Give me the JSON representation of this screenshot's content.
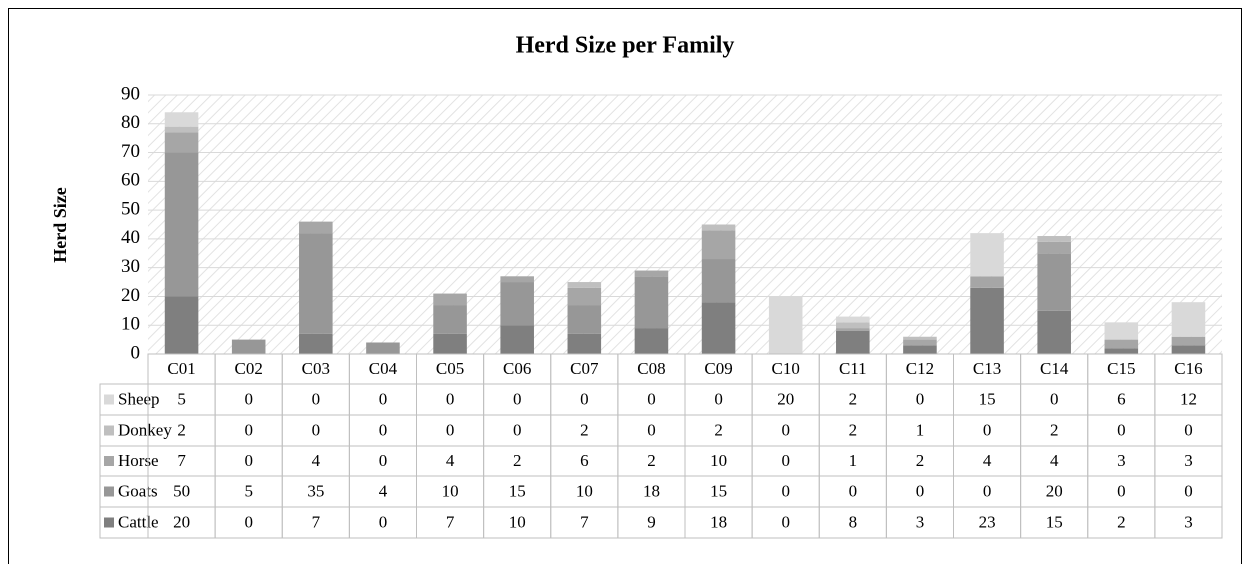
{
  "chart_data": {
    "type": "stacked-bar",
    "title": "Herd Size per Family",
    "y_label": "Herd Size",
    "categories": [
      "C01",
      "C02",
      "C03",
      "C04",
      "C05",
      "C06",
      "C07",
      "C08",
      "C09",
      "C10",
      "C11",
      "C12",
      "C13",
      "C14",
      "C15",
      "C16"
    ],
    "series": [
      {
        "name": "Sheep",
        "color": "#d9d9d9",
        "values": [
          5,
          0,
          0,
          0,
          0,
          0,
          0,
          0,
          0,
          20,
          2,
          0,
          15,
          0,
          6,
          12
        ]
      },
      {
        "name": "Donkey",
        "color": "#bfbfbf",
        "values": [
          2,
          0,
          0,
          0,
          0,
          0,
          2,
          0,
          2,
          0,
          2,
          1,
          0,
          2,
          0,
          0
        ]
      },
      {
        "name": "Horse",
        "color": "#a6a6a6",
        "values": [
          7,
          0,
          4,
          0,
          4,
          2,
          6,
          2,
          10,
          0,
          1,
          2,
          4,
          4,
          3,
          3
        ]
      },
      {
        "name": "Goats",
        "color": "#979797",
        "values": [
          50,
          5,
          35,
          4,
          10,
          15,
          10,
          18,
          15,
          0,
          0,
          0,
          0,
          20,
          0,
          0
        ]
      },
      {
        "name": "Cattle",
        "color": "#7f7f7f",
        "values": [
          20,
          0,
          7,
          0,
          7,
          10,
          7,
          9,
          18,
          0,
          8,
          3,
          23,
          15,
          2,
          3
        ]
      }
    ],
    "ylim": [
      0,
      90
    ],
    "yticks": [
      0,
      10,
      20,
      30,
      40,
      50,
      60,
      70,
      80,
      90
    ],
    "grid": true
  }
}
